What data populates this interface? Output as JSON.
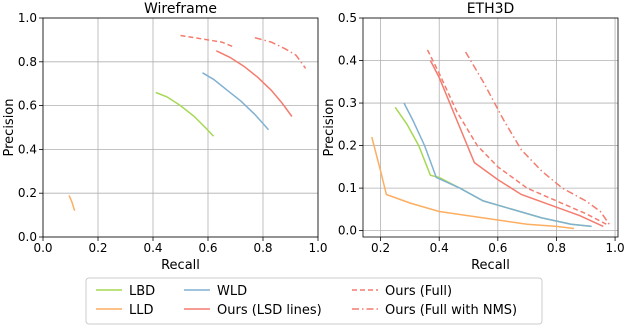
{
  "chart_data": [
    {
      "type": "line",
      "title": "Wireframe",
      "xlabel": "Recall",
      "ylabel": "Precision",
      "xlim": [
        0.0,
        1.0
      ],
      "ylim": [
        0.0,
        1.0
      ],
      "xticks": [
        "0.0",
        "0.2",
        "0.4",
        "0.6",
        "0.8",
        "1.0"
      ],
      "yticks": [
        "0.0",
        "0.2",
        "0.4",
        "0.6",
        "0.8",
        "1.0"
      ],
      "grid": true,
      "series": [
        {
          "name": "LBD",
          "color": "#a6d854",
          "dash": "solid",
          "points": [
            [
              0.41,
              0.66
            ],
            [
              0.45,
              0.64
            ],
            [
              0.5,
              0.6
            ],
            [
              0.55,
              0.55
            ],
            [
              0.59,
              0.5
            ],
            [
              0.62,
              0.46
            ]
          ]
        },
        {
          "name": "LLD",
          "color": "#fdae61",
          "dash": "solid",
          "points": [
            [
              0.095,
              0.19
            ],
            [
              0.105,
              0.16
            ],
            [
              0.115,
              0.12
            ]
          ]
        },
        {
          "name": "WLD",
          "color": "#80b1d3",
          "dash": "solid",
          "points": [
            [
              0.58,
              0.75
            ],
            [
              0.62,
              0.72
            ],
            [
              0.67,
              0.67
            ],
            [
              0.72,
              0.62
            ],
            [
              0.77,
              0.56
            ],
            [
              0.82,
              0.49
            ]
          ]
        },
        {
          "name": "Ours (LSD lines)",
          "color": "#f47c6f",
          "dash": "solid",
          "points": [
            [
              0.63,
              0.85
            ],
            [
              0.68,
              0.82
            ],
            [
              0.73,
              0.78
            ],
            [
              0.78,
              0.73
            ],
            [
              0.83,
              0.67
            ],
            [
              0.87,
              0.61
            ],
            [
              0.905,
              0.55
            ]
          ]
        },
        {
          "name": "Ours (Full)",
          "color": "#f47c6f",
          "dash": "dashed",
          "points": [
            [
              0.5,
              0.92
            ],
            [
              0.55,
              0.91
            ],
            [
              0.6,
              0.9
            ],
            [
              0.65,
              0.89
            ],
            [
              0.69,
              0.87
            ]
          ]
        },
        {
          "name": "Ours (Full with NMS)",
          "color": "#f47c6f",
          "dash": "dashdot",
          "points": [
            [
              0.77,
              0.91
            ],
            [
              0.83,
              0.89
            ],
            [
              0.88,
              0.86
            ],
            [
              0.92,
              0.83
            ],
            [
              0.955,
              0.77
            ]
          ]
        }
      ]
    },
    {
      "type": "line",
      "title": "ETH3D",
      "xlabel": "Recall",
      "ylabel": "Precision",
      "xlim": [
        0.14,
        1.01
      ],
      "ylim": [
        -0.015,
        0.5
      ],
      "xticks": [
        "0.2",
        "0.4",
        "0.6",
        "0.8",
        "1.0"
      ],
      "yticks": [
        "0.0",
        "0.1",
        "0.2",
        "0.3",
        "0.4",
        "0.5"
      ],
      "grid": true,
      "series": [
        {
          "name": "LBD",
          "color": "#a6d854",
          "dash": "solid",
          "points": [
            [
              0.25,
              0.29
            ],
            [
              0.29,
              0.25
            ],
            [
              0.33,
              0.2
            ],
            [
              0.37,
              0.13
            ],
            [
              0.4,
              0.125
            ],
            [
              0.47,
              0.1
            ],
            [
              0.55,
              0.07
            ],
            [
              0.65,
              0.05
            ],
            [
              0.75,
              0.03
            ],
            [
              0.85,
              0.015
            ],
            [
              0.92,
              0.01
            ]
          ]
        },
        {
          "name": "LLD",
          "color": "#fdae61",
          "dash": "solid",
          "points": [
            [
              0.17,
              0.22
            ],
            [
              0.2,
              0.14
            ],
            [
              0.22,
              0.085
            ],
            [
              0.3,
              0.065
            ],
            [
              0.4,
              0.045
            ],
            [
              0.5,
              0.035
            ],
            [
              0.6,
              0.025
            ],
            [
              0.7,
              0.015
            ],
            [
              0.8,
              0.01
            ],
            [
              0.86,
              0.005
            ]
          ]
        },
        {
          "name": "WLD",
          "color": "#80b1d3",
          "dash": "solid",
          "points": [
            [
              0.28,
              0.3
            ],
            [
              0.31,
              0.26
            ],
            [
              0.35,
              0.2
            ],
            [
              0.39,
              0.125
            ],
            [
              0.47,
              0.1
            ],
            [
              0.55,
              0.07
            ],
            [
              0.65,
              0.05
            ],
            [
              0.75,
              0.03
            ],
            [
              0.85,
              0.015
            ],
            [
              0.92,
              0.01
            ]
          ]
        },
        {
          "name": "Ours (LSD lines)",
          "color": "#f47c6f",
          "dash": "solid",
          "points": [
            [
              0.37,
              0.4
            ],
            [
              0.4,
              0.36
            ],
            [
              0.46,
              0.26
            ],
            [
              0.52,
              0.16
            ],
            [
              0.6,
              0.12
            ],
            [
              0.68,
              0.085
            ],
            [
              0.78,
              0.06
            ],
            [
              0.88,
              0.035
            ],
            [
              0.96,
              0.01
            ]
          ]
        },
        {
          "name": "Ours (Full)",
          "color": "#f47c6f",
          "dash": "dashed",
          "points": [
            [
              0.36,
              0.425
            ],
            [
              0.4,
              0.37
            ],
            [
              0.46,
              0.28
            ],
            [
              0.53,
              0.2
            ],
            [
              0.6,
              0.15
            ],
            [
              0.7,
              0.1
            ],
            [
              0.8,
              0.07
            ],
            [
              0.9,
              0.04
            ],
            [
              0.97,
              0.015
            ]
          ]
        },
        {
          "name": "Ours (Full with NMS)",
          "color": "#f47c6f",
          "dash": "dashdot",
          "points": [
            [
              0.49,
              0.42
            ],
            [
              0.55,
              0.35
            ],
            [
              0.62,
              0.26
            ],
            [
              0.68,
              0.19
            ],
            [
              0.75,
              0.14
            ],
            [
              0.82,
              0.1
            ],
            [
              0.9,
              0.07
            ],
            [
              0.95,
              0.045
            ],
            [
              0.98,
              0.015
            ]
          ]
        }
      ]
    }
  ],
  "legend": {
    "placement": "bottom-center",
    "entries": [
      {
        "label": "LBD",
        "color": "#a6d854",
        "dash": "solid"
      },
      {
        "label": "LLD",
        "color": "#fdae61",
        "dash": "solid"
      },
      {
        "label": "WLD",
        "color": "#80b1d3",
        "dash": "solid"
      },
      {
        "label": "Ours (LSD lines)",
        "color": "#f47c6f",
        "dash": "solid"
      },
      {
        "label": "Ours (Full)",
        "color": "#f47c6f",
        "dash": "dashed"
      },
      {
        "label": "Ours (Full with NMS)",
        "color": "#f47c6f",
        "dash": "dashdot"
      }
    ]
  }
}
